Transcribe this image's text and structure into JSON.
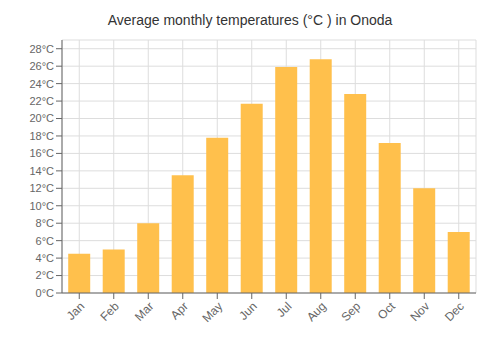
{
  "chart_data": {
    "type": "bar",
    "title": "Average monthly temperatures (°C ) in Onoda",
    "categories": [
      "Jan",
      "Feb",
      "Mar",
      "Apr",
      "May",
      "Jun",
      "Jul",
      "Aug",
      "Sep",
      "Oct",
      "Nov",
      "Dec"
    ],
    "values": [
      4.5,
      5.0,
      8.0,
      13.5,
      17.8,
      21.7,
      25.9,
      26.8,
      22.8,
      17.2,
      12.0,
      7.0
    ],
    "color": "#FFC04C",
    "ylim": [
      0,
      29
    ],
    "yticks": [
      {
        "value": 0,
        "label": "0°C"
      },
      {
        "value": 2,
        "label": "2°C"
      },
      {
        "value": 4,
        "label": "4°C"
      },
      {
        "value": 6,
        "label": "6°C"
      },
      {
        "value": 8,
        "label": "8°C"
      },
      {
        "value": 10,
        "label": "10°C"
      },
      {
        "value": 12,
        "label": "12°C"
      },
      {
        "value": 14,
        "label": "14°C"
      },
      {
        "value": 16,
        "label": "16°C"
      },
      {
        "value": 18,
        "label": "18°C"
      },
      {
        "value": 20,
        "label": "20°C"
      },
      {
        "value": 22,
        "label": "22°C"
      },
      {
        "value": 24,
        "label": "24°C"
      },
      {
        "value": 26,
        "label": "26°C"
      },
      {
        "value": 28,
        "label": "28°C"
      }
    ],
    "grid": true
  }
}
